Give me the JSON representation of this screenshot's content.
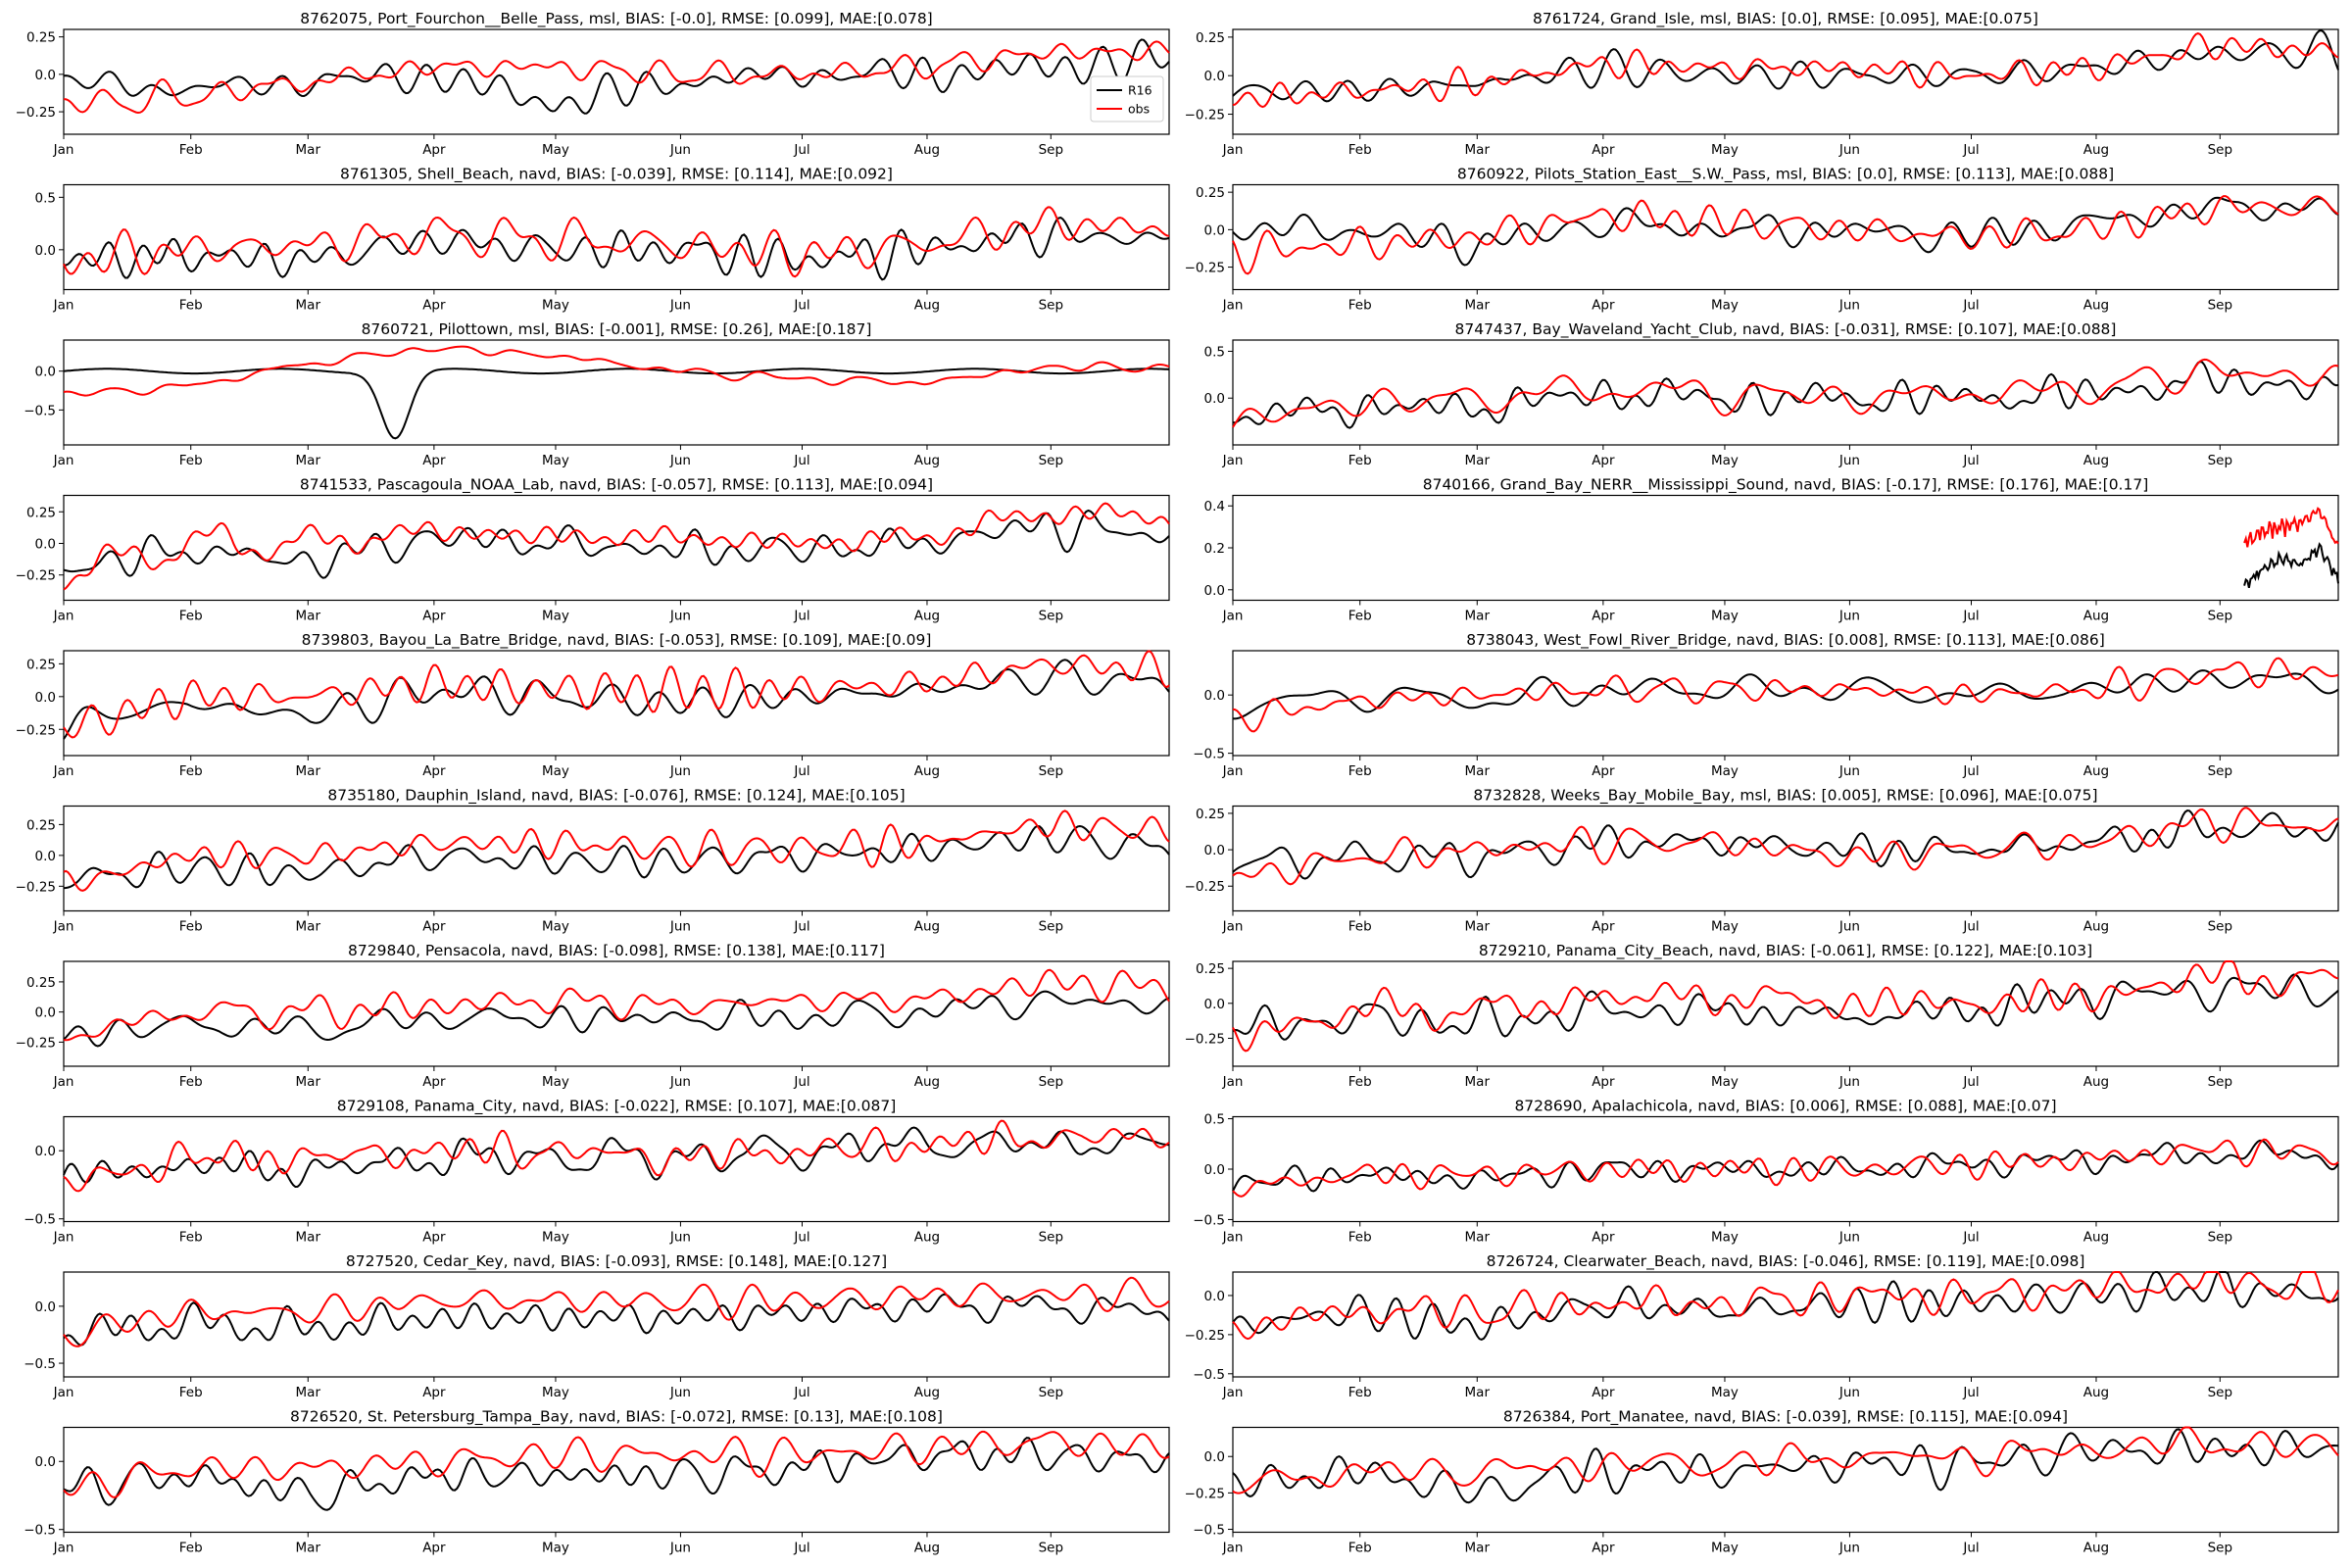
{
  "figure": {
    "months": [
      "Jan",
      "Feb",
      "Mar",
      "Apr",
      "May",
      "Jun",
      "Jul",
      "Aug",
      "Sep"
    ],
    "legend": [
      "R16",
      "obs"
    ],
    "colors": {
      "model": "#000000",
      "obs": "#ff0000",
      "axis": "#000000"
    }
  },
  "chart_data": [
    {
      "type": "line",
      "title": "8762075, Port_Fourchon__Belle_Pass, msl, BIAS: [-0.0], RMSE: [0.099], MAE:[0.078]",
      "xlabel": "",
      "ylabel": "",
      "yticks": [
        -0.25,
        0.0,
        0.25
      ],
      "ylim": [
        -0.4,
        0.3
      ],
      "model_base": [
        -0.05,
        -0.1,
        -0.05,
        0.0,
        -0.2,
        -0.05,
        0.0,
        0.0,
        0.05,
        0.1
      ],
      "obs_base": [
        -0.2,
        -0.15,
        -0.05,
        0.05,
        0.05,
        0.0,
        0.0,
        0.05,
        0.15,
        0.15
      ],
      "seed": 1,
      "model_amp": 0.08,
      "obs_amp": 0.07,
      "legend": true
    },
    {
      "type": "line",
      "title": "8761724, Grand_Isle, msl, BIAS: [0.0], RMSE: [0.095], MAE:[0.075]",
      "xlabel": "",
      "ylabel": "",
      "yticks": [
        -0.25,
        0.0,
        0.25
      ],
      "ylim": [
        -0.38,
        0.3
      ],
      "model_base": [
        -0.1,
        -0.1,
        -0.05,
        0.05,
        0.0,
        0.0,
        0.0,
        0.05,
        0.15,
        0.15
      ],
      "obs_base": [
        -0.15,
        -0.1,
        -0.05,
        0.08,
        0.05,
        0.05,
        0.0,
        0.05,
        0.2,
        0.15
      ],
      "seed": 2,
      "model_amp": 0.08,
      "obs_amp": 0.07
    },
    {
      "type": "line",
      "title": "8761305, Shell_Beach, navd, BIAS: [-0.039], RMSE: [0.114], MAE:[0.092]",
      "xlabel": "",
      "ylabel": "",
      "yticks": [
        0.0,
        0.5
      ],
      "ylim": [
        -0.38,
        0.62
      ],
      "model_base": [
        -0.1,
        -0.05,
        -0.1,
        0.1,
        0.0,
        0.0,
        -0.1,
        0.0,
        0.15,
        0.1
      ],
      "obs_base": [
        -0.1,
        0.0,
        0.05,
        0.15,
        0.1,
        0.05,
        -0.05,
        0.05,
        0.25,
        0.2
      ],
      "seed": 3,
      "model_amp": 0.13,
      "obs_amp": 0.14
    },
    {
      "type": "line",
      "title": "8760922, Pilots_Station_East__S.W._Pass, msl, BIAS: [0.0], RMSE: [0.113], MAE:[0.088]",
      "xlabel": "",
      "ylabel": "",
      "yticks": [
        -0.25,
        0.0,
        0.25
      ],
      "ylim": [
        -0.4,
        0.3
      ],
      "model_base": [
        0.0,
        0.0,
        -0.1,
        0.05,
        0.0,
        0.0,
        -0.05,
        0.05,
        0.15,
        0.15
      ],
      "obs_base": [
        -0.15,
        -0.1,
        -0.05,
        0.1,
        0.05,
        0.0,
        -0.05,
        0.0,
        0.15,
        0.15
      ],
      "seed": 4,
      "model_amp": 0.08,
      "obs_amp": 0.08
    },
    {
      "type": "line",
      "title": "8760721, Pilottown, msl, BIAS: [-0.001], RMSE: [0.26], MAE:[0.187]",
      "xlabel": "",
      "ylabel": "",
      "yticks": [
        -0.5,
        0.0
      ],
      "ylim": [
        -0.95,
        0.4
      ],
      "model_base": [
        0.0,
        0.0,
        0.0,
        0.0,
        0.0,
        0.0,
        0.0,
        0.0,
        0.0,
        0.0
      ],
      "obs_base": [
        -0.3,
        -0.2,
        0.1,
        0.3,
        0.2,
        0.0,
        -0.1,
        -0.15,
        0.05,
        0.05
      ],
      "seed": 5,
      "model_amp": 0.01,
      "obs_amp": 0.04,
      "special": "pilottown"
    },
    {
      "type": "line",
      "title": "8747437, Bay_Waveland_Yacht_Club, navd, BIAS: [-0.031], RMSE: [0.107], MAE:[0.088]",
      "xlabel": "",
      "ylabel": "",
      "yticks": [
        0.0,
        0.5
      ],
      "ylim": [
        -0.5,
        0.62
      ],
      "model_base": [
        -0.2,
        -0.1,
        -0.1,
        0.05,
        0.0,
        0.0,
        0.0,
        0.05,
        0.2,
        0.1
      ],
      "obs_base": [
        -0.25,
        -0.05,
        0.0,
        0.1,
        0.05,
        0.0,
        0.05,
        0.1,
        0.3,
        0.2
      ],
      "seed": 6,
      "model_amp": 0.13,
      "obs_amp": 0.13
    },
    {
      "type": "line",
      "title": "8741533, Pascagoula_NOAA_Lab, navd, BIAS: [-0.057], RMSE: [0.113], MAE:[0.094]",
      "xlabel": "",
      "ylabel": "",
      "yticks": [
        -0.25,
        0.0,
        0.25
      ],
      "ylim": [
        -0.45,
        0.38
      ],
      "model_base": [
        -0.2,
        -0.05,
        -0.15,
        0.05,
        0.0,
        -0.05,
        -0.05,
        0.0,
        0.15,
        0.05
      ],
      "obs_base": [
        -0.25,
        0.0,
        0.0,
        0.1,
        0.05,
        0.05,
        0.0,
        0.05,
        0.25,
        0.2
      ],
      "seed": 7,
      "model_amp": 0.1,
      "obs_amp": 0.1
    },
    {
      "type": "line",
      "title": "8740166, Grand_Bay_NERR__Mississippi_Sound, navd, BIAS: [-0.17], RMSE: [0.176], MAE:[0.17]",
      "xlabel": "",
      "ylabel": "",
      "yticks": [
        0.0,
        0.2,
        0.4
      ],
      "ylim": [
        -0.05,
        0.45
      ],
      "model_base": [
        0.02,
        0.1,
        0.15,
        0.12,
        0.2,
        0.05
      ],
      "obs_base": [
        0.22,
        0.28,
        0.3,
        0.32,
        0.38,
        0.2
      ],
      "seed": 8,
      "model_amp": 0.03,
      "obs_amp": 0.03,
      "xstart": 0.915
    },
    {
      "type": "line",
      "title": "8739803, Bayou_La_Batre_Bridge, navd, BIAS: [-0.053], RMSE: [0.109], MAE:[0.09]",
      "xlabel": "",
      "ylabel": "",
      "yticks": [
        -0.25,
        0.0,
        0.25
      ],
      "ylim": [
        -0.45,
        0.35
      ],
      "model_base": [
        -0.2,
        -0.05,
        -0.15,
        0.05,
        0.0,
        -0.05,
        0.0,
        0.05,
        0.15,
        0.1
      ],
      "obs_base": [
        -0.25,
        0.0,
        0.0,
        0.1,
        0.05,
        0.05,
        0.05,
        0.1,
        0.25,
        0.2
      ],
      "seed": 9,
      "model_amp": 0.1,
      "obs_amp": 0.1
    },
    {
      "type": "line",
      "title": "8738043, West_Fowl_River_Bridge, navd, BIAS: [0.008], RMSE: [0.113], MAE:[0.086]",
      "xlabel": "",
      "ylabel": "",
      "yticks": [
        -0.5,
        0.0
      ],
      "ylim": [
        -0.52,
        0.38
      ],
      "model_base": [
        -0.1,
        0.0,
        -0.05,
        0.05,
        0.05,
        0.05,
        0.0,
        0.05,
        0.15,
        0.1
      ],
      "obs_base": [
        -0.2,
        -0.05,
        0.0,
        0.05,
        0.05,
        0.05,
        0.0,
        0.05,
        0.2,
        0.2
      ],
      "seed": 10,
      "model_amp": 0.09,
      "obs_amp": 0.09
    },
    {
      "type": "line",
      "title": "8735180, Dauphin_Island, navd, BIAS: [-0.076], RMSE: [0.124], MAE:[0.105]",
      "xlabel": "",
      "ylabel": "",
      "yticks": [
        -0.25,
        0.0,
        0.25
      ],
      "ylim": [
        -0.45,
        0.4
      ],
      "model_base": [
        -0.2,
        -0.1,
        -0.15,
        0.0,
        -0.05,
        -0.05,
        0.0,
        0.05,
        0.15,
        0.05
      ],
      "obs_base": [
        -0.25,
        0.0,
        0.0,
        0.1,
        0.1,
        0.05,
        0.05,
        0.1,
        0.25,
        0.2
      ],
      "seed": 11,
      "model_amp": 0.1,
      "obs_amp": 0.1
    },
    {
      "type": "line",
      "title": "8732828, Weeks_Bay_Mobile_Bay, msl, BIAS: [0.005], RMSE: [0.096], MAE:[0.075]",
      "xlabel": "",
      "ylabel": "",
      "yticks": [
        -0.25,
        0.0,
        0.25
      ],
      "ylim": [
        -0.42,
        0.3
      ],
      "model_base": [
        -0.1,
        -0.05,
        -0.05,
        0.05,
        0.05,
        0.0,
        0.0,
        0.05,
        0.15,
        0.15
      ],
      "obs_base": [
        -0.2,
        -0.05,
        0.0,
        0.05,
        0.05,
        -0.05,
        0.0,
        0.05,
        0.2,
        0.15
      ],
      "seed": 12,
      "model_amp": 0.09,
      "obs_amp": 0.08
    },
    {
      "type": "line",
      "title": "8729840, Pensacola, navd, BIAS: [-0.098], RMSE: [0.138], MAE:[0.117]",
      "xlabel": "",
      "ylabel": "",
      "yticks": [
        -0.25,
        0.0,
        0.25
      ],
      "ylim": [
        -0.45,
        0.42
      ],
      "model_base": [
        -0.2,
        -0.1,
        -0.15,
        -0.05,
        -0.05,
        -0.05,
        -0.05,
        0.0,
        0.1,
        0.05
      ],
      "obs_base": [
        -0.2,
        0.0,
        0.0,
        0.05,
        0.1,
        0.05,
        0.1,
        0.1,
        0.25,
        0.2
      ],
      "seed": 13,
      "model_amp": 0.09,
      "obs_amp": 0.09
    },
    {
      "type": "line",
      "title": "8729210, Panama_City_Beach, navd, BIAS: [-0.061], RMSE: [0.122], MAE:[0.103]",
      "xlabel": "",
      "ylabel": "",
      "yticks": [
        -0.25,
        0.0,
        0.25
      ],
      "ylim": [
        -0.45,
        0.3
      ],
      "model_base": [
        -0.2,
        -0.1,
        -0.15,
        -0.05,
        -0.05,
        -0.1,
        -0.05,
        0.05,
        0.1,
        0.1
      ],
      "obs_base": [
        -0.25,
        -0.05,
        -0.05,
        0.05,
        0.05,
        0.0,
        0.0,
        0.05,
        0.2,
        0.15
      ],
      "seed": 14,
      "model_amp": 0.1,
      "obs_amp": 0.09
    },
    {
      "type": "line",
      "title": "8729108, Panama_City, navd, BIAS: [-0.022], RMSE: [0.107], MAE:[0.087]",
      "xlabel": "",
      "ylabel": "",
      "yticks": [
        -0.5,
        0.0
      ],
      "ylim": [
        -0.52,
        0.25
      ],
      "model_base": [
        -0.2,
        -0.1,
        -0.15,
        -0.05,
        -0.05,
        -0.05,
        0.0,
        0.05,
        0.05,
        0.05
      ],
      "obs_base": [
        -0.25,
        -0.05,
        -0.05,
        0.0,
        0.0,
        -0.05,
        0.0,
        0.05,
        0.1,
        0.1
      ],
      "seed": 15,
      "model_amp": 0.1,
      "obs_amp": 0.09
    },
    {
      "type": "line",
      "title": "8728690, Apalachicola, navd, BIAS: [0.006], RMSE: [0.088], MAE:[0.07]",
      "xlabel": "",
      "ylabel": "",
      "yticks": [
        -0.5,
        0.0,
        0.5
      ],
      "ylim": [
        -0.52,
        0.52
      ],
      "model_base": [
        -0.15,
        -0.05,
        -0.1,
        0.0,
        0.0,
        0.0,
        0.05,
        0.1,
        0.15,
        0.15
      ],
      "obs_base": [
        -0.2,
        -0.05,
        -0.05,
        0.0,
        0.0,
        0.0,
        0.05,
        0.1,
        0.2,
        0.15
      ],
      "seed": 16,
      "model_amp": 0.1,
      "obs_amp": 0.1
    },
    {
      "type": "line",
      "title": "8727520, Cedar_Key, navd, BIAS: [-0.093], RMSE: [0.148], MAE:[0.127]",
      "xlabel": "",
      "ylabel": "",
      "yticks": [
        -0.5,
        0.0
      ],
      "ylim": [
        -0.62,
        0.3
      ],
      "model_base": [
        -0.25,
        -0.15,
        -0.2,
        -0.1,
        -0.1,
        -0.1,
        -0.05,
        0.0,
        0.0,
        -0.05
      ],
      "obs_base": [
        -0.25,
        -0.05,
        -0.05,
        0.05,
        0.05,
        0.05,
        0.05,
        0.1,
        0.1,
        0.1
      ],
      "seed": 17,
      "model_amp": 0.11,
      "obs_amp": 0.1
    },
    {
      "type": "line",
      "title": "8726724, Clearwater_Beach, navd, BIAS: [-0.046], RMSE: [0.119], MAE:[0.098]",
      "xlabel": "",
      "ylabel": "",
      "yticks": [
        -0.5,
        -0.25,
        0.0
      ],
      "ylim": [
        -0.52,
        0.15
      ],
      "model_base": [
        -0.2,
        -0.1,
        -0.2,
        -0.05,
        -0.1,
        -0.05,
        -0.05,
        0.0,
        0.05,
        0.0
      ],
      "obs_base": [
        -0.2,
        -0.1,
        -0.1,
        -0.05,
        -0.05,
        0.0,
        0.0,
        0.05,
        0.1,
        0.05
      ],
      "seed": 18,
      "model_amp": 0.09,
      "obs_amp": 0.08
    },
    {
      "type": "line",
      "title": "8726520, St. Petersburg_Tampa_Bay, navd, BIAS: [-0.072], RMSE: [0.13], MAE:[0.108]",
      "xlabel": "",
      "ylabel": "",
      "yticks": [
        -0.5,
        0.0
      ],
      "ylim": [
        -0.52,
        0.25
      ],
      "model_base": [
        -0.2,
        -0.1,
        -0.25,
        -0.1,
        -0.1,
        -0.1,
        -0.05,
        0.05,
        0.05,
        0.0
      ],
      "obs_base": [
        -0.2,
        -0.05,
        -0.05,
        0.0,
        0.05,
        0.05,
        0.05,
        0.1,
        0.15,
        0.1
      ],
      "seed": 19,
      "model_amp": 0.1,
      "obs_amp": 0.09
    },
    {
      "type": "line",
      "title": "8726384, Port_Manatee, navd, BIAS: [-0.039], RMSE: [0.115], MAE:[0.094]",
      "xlabel": "",
      "ylabel": "",
      "yticks": [
        -0.5,
        -0.25,
        0.0
      ],
      "ylim": [
        -0.52,
        0.2
      ],
      "model_base": [
        -0.2,
        -0.1,
        -0.25,
        -0.1,
        -0.1,
        -0.05,
        -0.05,
        0.05,
        0.05,
        0.05
      ],
      "obs_base": [
        -0.2,
        -0.1,
        -0.1,
        -0.05,
        -0.05,
        0.0,
        0.0,
        0.05,
        0.1,
        0.05
      ],
      "seed": 20,
      "model_amp": 0.09,
      "obs_amp": 0.08
    }
  ]
}
